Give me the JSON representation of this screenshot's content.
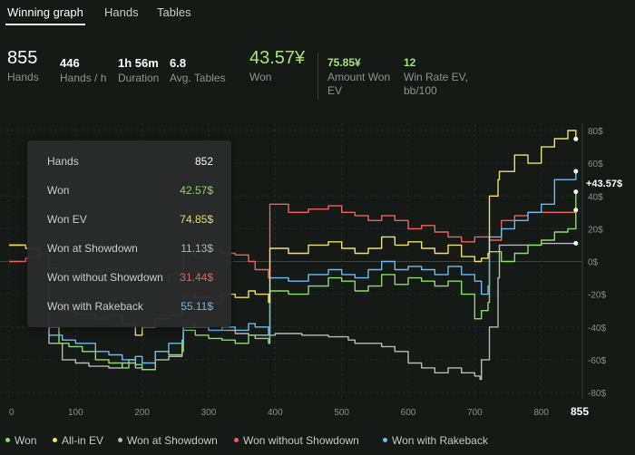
{
  "tabs": [
    {
      "label": "Winning graph",
      "active": true
    },
    {
      "label": "Hands",
      "active": false
    },
    {
      "label": "Tables",
      "active": false
    }
  ],
  "stats": {
    "hands": {
      "value": "855",
      "label": "Hands"
    },
    "hands_per_h": {
      "value": "446",
      "label": "Hands / h"
    },
    "duration": {
      "value": "1h 56m",
      "label": "Duration"
    },
    "avg_tables": {
      "value": "6.8",
      "label": "Avg. Tables"
    },
    "won": {
      "value": "43.57¥",
      "label": "Won"
    },
    "amount_won_ev": {
      "value": "75.85¥",
      "label_line1": "Amount Won",
      "label_line2": "EV"
    },
    "win_rate_ev": {
      "value": "12",
      "label_line1": "Win Rate EV,",
      "label_line2": "bb/100"
    }
  },
  "tooltip": {
    "rows": [
      {
        "label": "Hands",
        "value": "852",
        "color": "#ffffff"
      },
      {
        "label": "Won",
        "value": "42.57$",
        "color": "#8bdc6a"
      },
      {
        "label": "Won EV",
        "value": "74.85$",
        "color": "#efe06a"
      },
      {
        "label": "Won at Showdown",
        "value": "11.13$",
        "color": "#b8bab8"
      },
      {
        "label": "Won without Showdown",
        "value": "31.44$",
        "color": "#f0605e"
      },
      {
        "label": "Won with Rakeback",
        "value": "55.11$",
        "color": "#6fb9f2"
      }
    ]
  },
  "chart_data": {
    "type": "line",
    "xlim": [
      0,
      855
    ],
    "ylim": [
      -82,
      85
    ],
    "x_ticks": [
      "0",
      "100",
      "200",
      "300",
      "400",
      "500",
      "600",
      "700",
      "800"
    ],
    "x_end_label": "855",
    "y_ticks": [
      "80$",
      "60$",
      "40$",
      "20$",
      "0$",
      "-20$",
      "-40$",
      "-60$",
      "-80$"
    ],
    "end_label": "+43.57$",
    "series": [
      {
        "name": "Won",
        "color": "#8bdc6a",
        "x": [
          0,
          25,
          45,
          60,
          75,
          90,
          110,
          130,
          150,
          170,
          180,
          190,
          200,
          220,
          240,
          260,
          262,
          280,
          300,
          320,
          340,
          360,
          370,
          390,
          392,
          420,
          450,
          480,
          500,
          520,
          540,
          560,
          580,
          600,
          620,
          640,
          660,
          680,
          700,
          710,
          720,
          722,
          740,
          760,
          780,
          800,
          820,
          840,
          852
        ],
        "y": [
          10,
          8,
          5,
          -40,
          -50,
          -52,
          -55,
          -60,
          -62,
          -65,
          -60,
          -63,
          -66,
          -55,
          -57,
          -50,
          -42,
          -45,
          -47,
          -48,
          -50,
          -45,
          -47,
          -50,
          -18,
          -20,
          -15,
          -10,
          -12,
          -18,
          -15,
          -8,
          -14,
          -10,
          -12,
          -15,
          -12,
          -20,
          -35,
          -30,
          -25,
          6,
          0,
          5,
          10,
          13,
          18,
          20,
          42.57
        ]
      },
      {
        "name": "All-in EV",
        "color": "#efe06a",
        "x": [
          0,
          25,
          45,
          60,
          80,
          100,
          130,
          150,
          170,
          190,
          200,
          220,
          240,
          260,
          262,
          280,
          300,
          320,
          340,
          360,
          370,
          390,
          392,
          420,
          450,
          480,
          500,
          520,
          540,
          560,
          580,
          600,
          620,
          640,
          660,
          680,
          700,
          710,
          720,
          722,
          735,
          737,
          760,
          780,
          800,
          820,
          840,
          852
        ],
        "y": [
          10,
          8,
          5,
          -25,
          -30,
          -32,
          -35,
          -33,
          -38,
          -45,
          -40,
          -35,
          -33,
          -30,
          -20,
          -22,
          -25,
          -20,
          -22,
          -18,
          -20,
          -25,
          8,
          5,
          10,
          12,
          8,
          5,
          8,
          15,
          10,
          12,
          8,
          5,
          10,
          3,
          0,
          2,
          5,
          40,
          50,
          55,
          65,
          60,
          70,
          75,
          80,
          74.85
        ]
      },
      {
        "name": "Won at Showdown",
        "color": "#b8bab8",
        "x": [
          0,
          25,
          45,
          60,
          80,
          100,
          120,
          150,
          170,
          190,
          200,
          220,
          240,
          260,
          262,
          300,
          340,
          360,
          400,
          440,
          480,
          500,
          510,
          515,
          520,
          540,
          560,
          580,
          600,
          620,
          640,
          660,
          680,
          700,
          708,
          710,
          720,
          722,
          735,
          737,
          760,
          800,
          852
        ],
        "y": [
          10,
          8,
          5,
          -50,
          -60,
          -62,
          -64,
          -65,
          -62,
          -65,
          -66,
          -60,
          -58,
          -55,
          -40,
          -42,
          -44,
          -45,
          -44,
          -45,
          -46,
          -46,
          -48,
          -48,
          -50,
          -50,
          -52,
          -55,
          -62,
          -65,
          -68,
          -65,
          -68,
          -70,
          -72,
          -60,
          -60,
          -40,
          -10,
          10,
          10,
          11,
          11.13
        ]
      },
      {
        "name": "Won without Showdown",
        "color": "#f0605e",
        "x": [
          0,
          25,
          45,
          60,
          80,
          100,
          130,
          150,
          170,
          190,
          200,
          220,
          240,
          260,
          262,
          280,
          300,
          320,
          340,
          360,
          370,
          390,
          392,
          420,
          450,
          480,
          500,
          520,
          540,
          560,
          580,
          600,
          620,
          640,
          660,
          680,
          700,
          720,
          722,
          740,
          760,
          780,
          800,
          852
        ],
        "y": [
          0,
          2,
          5,
          -4,
          -6,
          -8,
          -6,
          -5,
          -8,
          -7,
          -10,
          -12,
          -8,
          -5,
          5,
          3,
          7,
          5,
          4,
          0,
          -5,
          -10,
          35,
          30,
          32,
          34,
          30,
          28,
          25,
          28,
          25,
          20,
          22,
          18,
          15,
          12,
          15,
          15,
          13,
          25,
          28,
          30,
          30,
          31.44
        ]
      },
      {
        "name": "Won with Rakeback",
        "color": "#6fb9f2",
        "x": [
          0,
          25,
          45,
          60,
          80,
          100,
          130,
          150,
          170,
          190,
          200,
          220,
          240,
          260,
          262,
          280,
          300,
          320,
          340,
          360,
          370,
          390,
          392,
          420,
          450,
          480,
          500,
          520,
          540,
          560,
          580,
          600,
          620,
          640,
          660,
          680,
          700,
          710,
          720,
          722,
          740,
          760,
          780,
          800,
          820,
          852
        ],
        "y": [
          10,
          8,
          5,
          -45,
          -48,
          -50,
          -55,
          -57,
          -60,
          -58,
          -62,
          -55,
          -50,
          -48,
          -38,
          -40,
          -42,
          -40,
          -42,
          -38,
          -40,
          -45,
          -10,
          -12,
          -8,
          -5,
          -8,
          -10,
          -5,
          0,
          -5,
          -3,
          -5,
          -8,
          -3,
          -8,
          -12,
          -20,
          -15,
          15,
          20,
          25,
          30,
          35,
          50,
          55.11
        ]
      }
    ]
  },
  "legend": [
    {
      "label": "Won",
      "color": "#8bdc6a"
    },
    {
      "label": "All-in EV",
      "color": "#efe06a"
    },
    {
      "label": "Won at Showdown",
      "color": "#b8bab8"
    },
    {
      "label": "Won without Showdown",
      "color": "#f0605e"
    },
    {
      "label": "Won with Rakeback",
      "color": "#6fb9f2"
    }
  ]
}
